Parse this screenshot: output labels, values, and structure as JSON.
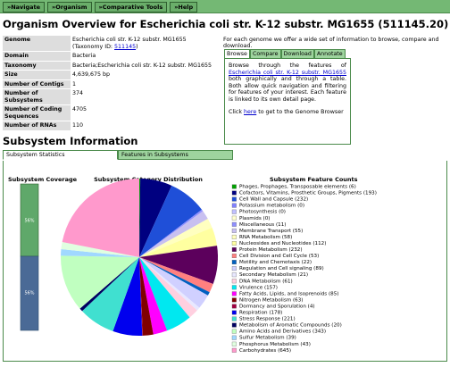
{
  "nav": [
    "»Navigate",
    "»Organism",
    "»Comparative Tools",
    "»Help"
  ],
  "title": "Organism Overview for Escherichia coli str. K-12 substr. MG1655 (511145.20)",
  "overview": {
    "genome": {
      "label": "Genome",
      "text": "Escherichia coli str. K-12 substr. MG1655 (Taxonomy ID: ",
      "link": "511145",
      "after": ")"
    },
    "rows": [
      [
        "Domain",
        "Bacteria"
      ],
      [
        "Taxonomy",
        "Bacteria;Escherichia coli str. K-12 substr. MG1655"
      ],
      [
        "Size",
        "4,639,675 bp"
      ],
      [
        "Number of Contigs",
        "1"
      ],
      [
        "Number of Subsystems",
        "374"
      ],
      [
        "Number of Coding Sequences",
        "4705"
      ],
      [
        "Number of RNAs",
        "110"
      ]
    ]
  },
  "intro": "For each genome we offer a wide set of information to browse, compare and download.",
  "browse_tabs": [
    "Browse",
    "Compare",
    "Download",
    "Annotate"
  ],
  "browse_box": {
    "text1": "Browse through the features of ",
    "link": "Escherichia coli str. K-12 substr. MG1655",
    "text2": " both graphically and through a table. Both allow quick navigation and filtering for features of your interest. Each feature is linked to its own detail page.",
    "click": "Click ",
    "here": "here",
    "click_after": " to get to the Genome Browser"
  },
  "subsystem": {
    "heading": "Subsystem Information",
    "tabs": [
      "Subsystem Statistics",
      "Features in Subsystems"
    ],
    "coverage": {
      "title": "Subsystem Coverage",
      "top_label": "56%",
      "bottom_label": "56%"
    },
    "distribution_title": "Subsystem Category Distribution",
    "counts_title": "Subsystem Feature Counts",
    "items": [
      {
        "label": "Phages, Prophages, Transposable elements (6)",
        "value": 6,
        "color": "#00a000"
      },
      {
        "label": "Cofactors, Vitamins, Prosthetic Groups, Pigments (193)",
        "value": 193,
        "color": "#000080"
      },
      {
        "label": "Cell Wall and Capsule (232)",
        "value": 232,
        "color": "#1f4fd8"
      },
      {
        "label": "Potassium metabolism (0)",
        "value": 0,
        "color": "#8080ff"
      },
      {
        "label": "Photosynthesis (0)",
        "value": 0,
        "color": "#c0c0ff"
      },
      {
        "label": "Plasmids (0)",
        "value": 0,
        "color": "#ffffd0"
      },
      {
        "label": "Miscellaneous (11)",
        "value": 11,
        "color": "#8f8fff"
      },
      {
        "label": "Membrane Transport (55)",
        "value": 55,
        "color": "#c8c0f0"
      },
      {
        "label": "RNA Metabolism (58)",
        "value": 58,
        "color": "#ffffc0"
      },
      {
        "label": "Nucleosides and Nucleotides (112)",
        "value": 112,
        "color": "#ffffa0"
      },
      {
        "label": "Protein Metabolism (232)",
        "value": 232,
        "color": "#5c005c"
      },
      {
        "label": "Cell Division and Cell Cycle (53)",
        "value": 53,
        "color": "#ff8080"
      },
      {
        "label": "Motility and Chemotaxis (22)",
        "value": 22,
        "color": "#0060c0"
      },
      {
        "label": "Regulation and Cell signaling (89)",
        "value": 89,
        "color": "#d0d0ff"
      },
      {
        "label": "Secondary Metabolism (21)",
        "value": 21,
        "color": "#e8e8ff"
      },
      {
        "label": "DNA Metabolism (61)",
        "value": 61,
        "color": "#ffd0e0"
      },
      {
        "label": "Virulence (157)",
        "value": 157,
        "color": "#00e8f0"
      },
      {
        "label": "Fatty Acids, Lipids, and Isoprenoids (85)",
        "value": 85,
        "color": "#ff00ff"
      },
      {
        "label": "Nitrogen Metabolism (63)",
        "value": 63,
        "color": "#800000"
      },
      {
        "label": "Dormancy and Sporulation (4)",
        "value": 4,
        "color": "#a00040"
      },
      {
        "label": "Respiration (178)",
        "value": 178,
        "color": "#0000ee"
      },
      {
        "label": "Stress Response (221)",
        "value": 221,
        "color": "#40e0d0"
      },
      {
        "label": "Metabolism of Aromatic Compounds (20)",
        "value": 20,
        "color": "#000060"
      },
      {
        "label": "Amino Acids and Derivatives (343)",
        "value": 343,
        "color": "#c0ffc0"
      },
      {
        "label": "Sulfur Metabolism (39)",
        "value": 39,
        "color": "#a0d8ff"
      },
      {
        "label": "Phosphorus Metabolism (43)",
        "value": 43,
        "color": "#e0ffe0"
      },
      {
        "label": "Carbohydrates (645)",
        "value": 645,
        "color": "#ff99cc"
      }
    ]
  }
}
